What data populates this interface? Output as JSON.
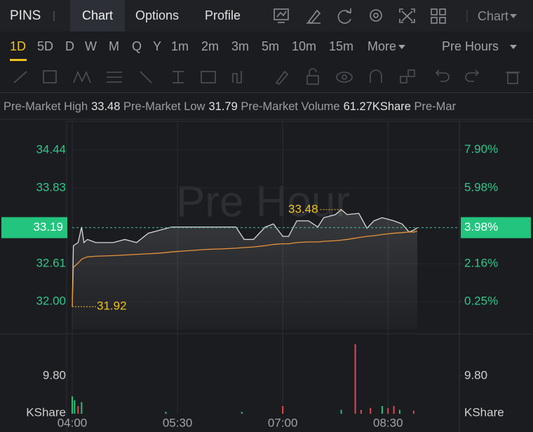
{
  "header": {
    "symbol": "PINS",
    "tabs": [
      "Chart",
      "Options",
      "Profile"
    ],
    "active_tab": 0,
    "chart_menu": "Chart"
  },
  "periods": {
    "items": [
      "1D",
      "5D",
      "D",
      "W",
      "M",
      "Q",
      "Y",
      "1m",
      "2m",
      "3m",
      "5m",
      "10m",
      "15m",
      "More"
    ],
    "active": 0,
    "session": "Pre Hours"
  },
  "stats": [
    {
      "label": "Pre-Market High",
      "value": "33.48"
    },
    {
      "label": "Pre-Market Low",
      "value": "31.79"
    },
    {
      "label": "Pre-Market Volume",
      "value": "61.27KShare"
    },
    {
      "label": "Pre-Mar"
    }
  ],
  "chart_data": [
    {
      "type": "line",
      "watermark": "Pre Hour",
      "x": [
        "04:00",
        "04:01",
        "04:05",
        "04:08",
        "04:10",
        "04:13",
        "04:20",
        "04:35",
        "04:45",
        "04:55",
        "05:05",
        "05:15",
        "05:25",
        "05:40",
        "05:55",
        "06:10",
        "06:20",
        "06:27",
        "06:35",
        "06:45",
        "06:52",
        "07:00",
        "07:05",
        "07:12",
        "07:22",
        "07:30",
        "07:35",
        "07:45",
        "07:50",
        "07:55",
        "08:05",
        "08:12",
        "08:18",
        "08:25",
        "08:35",
        "08:42",
        "08:48",
        "08:52",
        "08:55"
      ],
      "series": [
        {
          "color": "#d9d9d9",
          "values": [
            31.92,
            32.9,
            32.95,
            33.2,
            32.95,
            33.0,
            32.95,
            32.95,
            33.0,
            32.95,
            33.1,
            33.15,
            33.2,
            33.2,
            33.2,
            33.2,
            33.2,
            33.0,
            33.0,
            33.2,
            33.25,
            33.05,
            33.05,
            33.3,
            33.3,
            33.2,
            33.35,
            33.4,
            33.48,
            33.4,
            33.42,
            33.18,
            33.3,
            33.35,
            33.3,
            33.25,
            33.12,
            33.15,
            33.19
          ]
        },
        {
          "color": "#e8933a",
          "values": [
            31.92,
            32.55,
            32.62,
            32.68,
            32.7,
            32.72,
            32.73,
            32.74,
            32.75,
            32.76,
            32.77,
            32.78,
            32.8,
            32.82,
            32.84,
            32.85,
            32.86,
            32.87,
            32.88,
            32.9,
            32.92,
            32.93,
            32.93,
            32.95,
            32.96,
            32.96,
            32.97,
            32.98,
            32.99,
            33.0,
            33.03,
            33.05,
            33.06,
            33.08,
            33.1,
            33.11,
            33.12,
            33.12,
            33.13
          ]
        }
      ],
      "xlim": [
        "04:00",
        "09:31"
      ],
      "xticks": [
        "04:00",
        "05:30",
        "07:00",
        "08:30"
      ],
      "ylim": [
        31.55,
        34.9
      ],
      "yticks": [
        34.44,
        33.83,
        32.61,
        {
          "value": 32,
          "label": "32.00"
        }
      ],
      "y2lim": [
        -1.16,
        9.34
      ],
      "y2ticks": [
        {
          "value": 7.9,
          "label": "7.90%"
        },
        {
          "value": 5.98,
          "label": "5.98%"
        },
        {
          "value": 2.16,
          "label": "2.16%"
        },
        {
          "value": 0.25,
          "label": "0.25%"
        }
      ],
      "last": {
        "value": 33.19,
        "pct": {
          "value": 3.98,
          "label": "3.98%"
        },
        "color": "#23c47e"
      },
      "annotations": [
        {
          "x": "07:50",
          "value": 33.48,
          "direction": "left"
        },
        {
          "x": "04:00",
          "value": 31.92,
          "direction": "right"
        }
      ]
    },
    {
      "type": "bar",
      "x": [
        "04:00",
        "04:02",
        "04:05",
        "04:08",
        "05:20",
        "06:25",
        "07:00",
        "07:50",
        "08:02",
        "08:07",
        "08:15",
        "08:25",
        "08:30",
        "08:35",
        "08:40",
        "08:52"
      ],
      "values": [
        4.5,
        3.5,
        2,
        3,
        0.5,
        0.5,
        2,
        1,
        18,
        1,
        1.5,
        2,
        1.5,
        2,
        1,
        0.8
      ],
      "colors": [
        "#23c47e",
        "#23c47e",
        "#e0494f",
        "#23c47e",
        "#23c47e",
        "#23c47e",
        "#e0494f",
        "#23c47e",
        "#e0494f",
        "#e0494f",
        "#e0494f",
        "#23c47e",
        "#e0494f",
        "#e0494f",
        "#23c47e",
        "#e0494f"
      ],
      "ylim": [
        0,
        19.6
      ],
      "yticks": [
        {
          "value": 9.8,
          "label": "9.80"
        }
      ],
      "unit": "KShare"
    }
  ]
}
